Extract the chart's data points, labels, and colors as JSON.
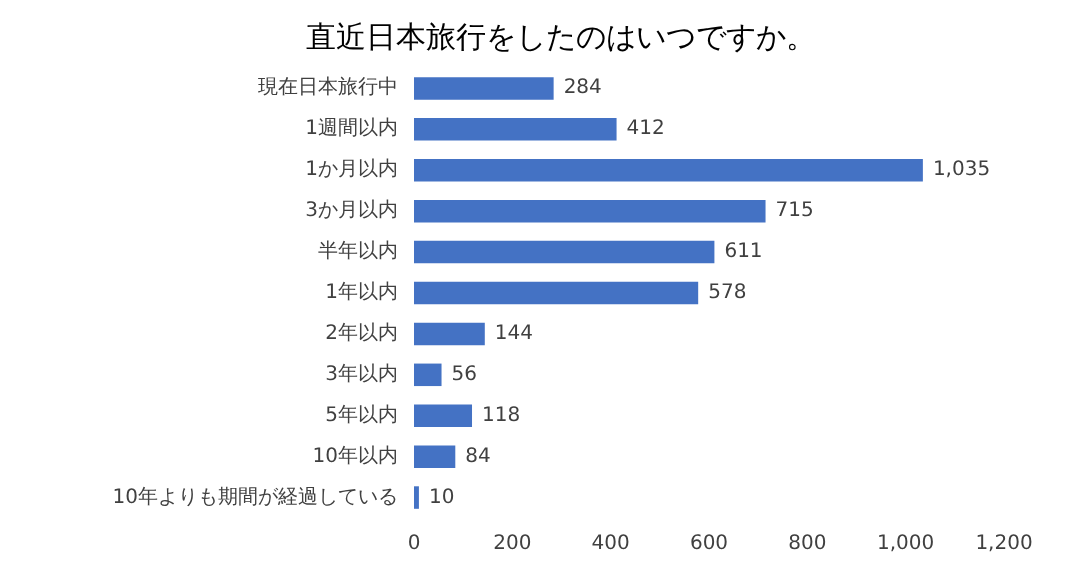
{
  "chart_data": {
    "type": "bar",
    "orientation": "horizontal",
    "title": "直近日本旅行をしたのはいつですか。",
    "categories": [
      "現在日本旅行中",
      "1週間以内",
      "1か月以内",
      "3か月以内",
      "半年以内",
      "1年以内",
      "2年以内",
      "3年以内",
      "5年以内",
      "10年以内",
      "10年よりも期間が経過している"
    ],
    "values": [
      284,
      412,
      1035,
      715,
      611,
      578,
      144,
      56,
      118,
      84,
      10
    ],
    "value_labels": [
      "284",
      "412",
      "1,035",
      "715",
      "611",
      "578",
      "144",
      "56",
      "118",
      "84",
      "10"
    ],
    "color": "#4472c4",
    "xlim": [
      0,
      1200
    ],
    "xticks": [
      {
        "value": 0,
        "label": "0"
      },
      {
        "value": 200,
        "label": "200"
      },
      {
        "value": 400,
        "label": "400"
      },
      {
        "value": 600,
        "label": "600"
      },
      {
        "value": 800,
        "label": "800"
      },
      {
        "value": 1000,
        "label": "1,000"
      },
      {
        "value": 1200,
        "label": "1,200"
      }
    ],
    "grid": false
  }
}
